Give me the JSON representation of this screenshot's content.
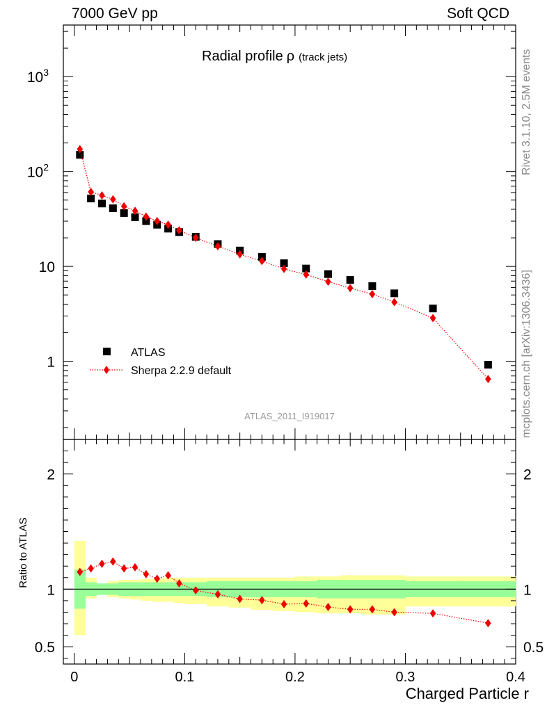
{
  "header": {
    "left": "7000 GeV pp",
    "right": "Soft QCD"
  },
  "side_labels": {
    "rivet": "Rivet 3.1.10,  2.5M events",
    "mcplots": "mcplots.cern.ch [arXiv:1306.3436]"
  },
  "chart_data": [
    {
      "type": "scatter",
      "title": "Radial profile",
      "title_symbol": "ρ",
      "title_suffix": "(track jets)",
      "analysis_label": "ATLAS_2011_I919017",
      "yscale": "log",
      "ylim": [
        0.15,
        3500
      ],
      "xlim": [
        -0.01,
        0.4
      ],
      "y_ticks": [
        {
          "value": 1,
          "label": "1",
          "exp": ""
        },
        {
          "value": 10,
          "label": "10",
          "exp": ""
        },
        {
          "value": 100,
          "label": "10",
          "exp": "2"
        },
        {
          "value": 1000,
          "label": "10",
          "exp": "3"
        }
      ],
      "legend_position": "lower-left",
      "series": [
        {
          "name": "ATLAS",
          "marker": "square",
          "color": "#000000",
          "x": [
            0.005,
            0.015,
            0.025,
            0.035,
            0.045,
            0.055,
            0.065,
            0.075,
            0.085,
            0.095,
            0.11,
            0.13,
            0.15,
            0.17,
            0.19,
            0.21,
            0.23,
            0.25,
            0.27,
            0.29,
            0.325,
            0.375
          ],
          "y": [
            150,
            52,
            46,
            41,
            36.5,
            33,
            30,
            27.5,
            25,
            23,
            20.5,
            17.2,
            14.7,
            12.6,
            10.8,
            9.5,
            8.3,
            7.2,
            6.2,
            5.2,
            3.6,
            0.92
          ]
        },
        {
          "name": "Sherpa 2.2.9 default",
          "marker": "diamond",
          "line": "dotted",
          "color": "#ee0000",
          "x": [
            0.005,
            0.015,
            0.025,
            0.035,
            0.045,
            0.055,
            0.065,
            0.075,
            0.085,
            0.095,
            0.11,
            0.13,
            0.15,
            0.17,
            0.19,
            0.21,
            0.23,
            0.25,
            0.27,
            0.29,
            0.325,
            0.375
          ],
          "y": [
            172,
            61,
            56,
            51,
            43,
            38.5,
            33.5,
            30,
            27.5,
            24,
            20,
            16.3,
            13.4,
            11.4,
            9.4,
            8.2,
            6.9,
            5.9,
            5.1,
            4.2,
            2.85,
            0.65
          ]
        }
      ]
    },
    {
      "type": "scatter",
      "ylabel": "Ratio to ATLAS",
      "xlabel": "Charged Particle r",
      "ylim": [
        0.35,
        2.3
      ],
      "xlim": [
        -0.01,
        0.4
      ],
      "x_ticks": [
        {
          "value": 0,
          "label": "0"
        },
        {
          "value": 0.1,
          "label": "0.1"
        },
        {
          "value": 0.2,
          "label": "0.2"
        },
        {
          "value": 0.3,
          "label": "0.3"
        },
        {
          "value": 0.4,
          "label": "0.4"
        }
      ],
      "y_ticks": [
        {
          "value": 0.5,
          "label": "0.5"
        },
        {
          "value": 1,
          "label": "1"
        },
        {
          "value": 2,
          "label": "2"
        }
      ],
      "bands": {
        "edges": [
          0,
          0.01,
          0.02,
          0.03,
          0.04,
          0.05,
          0.06,
          0.07,
          0.08,
          0.09,
          0.1,
          0.12,
          0.14,
          0.16,
          0.18,
          0.2,
          0.22,
          0.24,
          0.26,
          0.28,
          0.3,
          0.35,
          0.4
        ],
        "stat": {
          "color": "#99ff99",
          "low": [
            0.83,
            0.94,
            0.95,
            0.95,
            0.94,
            0.94,
            0.94,
            0.94,
            0.94,
            0.94,
            0.94,
            0.93,
            0.93,
            0.93,
            0.93,
            0.93,
            0.92,
            0.92,
            0.92,
            0.92,
            0.93,
            0.93
          ],
          "high": [
            1.17,
            1.06,
            1.05,
            1.05,
            1.06,
            1.06,
            1.06,
            1.06,
            1.06,
            1.06,
            1.06,
            1.07,
            1.07,
            1.07,
            1.07,
            1.07,
            1.08,
            1.08,
            1.08,
            1.08,
            1.07,
            1.07
          ]
        },
        "total": {
          "color": "#ffff99",
          "low": [
            0.6,
            0.92,
            0.96,
            0.93,
            0.92,
            0.91,
            0.9,
            0.89,
            0.89,
            0.88,
            0.87,
            0.85,
            0.84,
            0.82,
            0.81,
            0.8,
            0.79,
            0.79,
            0.78,
            0.78,
            0.85,
            0.85
          ],
          "high": [
            1.42,
            1.1,
            1.05,
            1.07,
            1.08,
            1.08,
            1.09,
            1.09,
            1.1,
            1.1,
            1.1,
            1.1,
            1.1,
            1.1,
            1.1,
            1.11,
            1.11,
            1.12,
            1.12,
            1.12,
            1.11,
            1.11
          ]
        }
      },
      "series": [
        {
          "name": "Sherpa 2.2.9 default / ATLAS",
          "marker": "diamond",
          "line": "dotted",
          "color": "#ee0000",
          "x": [
            0.005,
            0.015,
            0.025,
            0.035,
            0.045,
            0.055,
            0.065,
            0.075,
            0.085,
            0.095,
            0.11,
            0.13,
            0.15,
            0.17,
            0.19,
            0.21,
            0.23,
            0.25,
            0.27,
            0.29,
            0.325,
            0.375
          ],
          "y": [
            1.15,
            1.18,
            1.22,
            1.24,
            1.18,
            1.19,
            1.13,
            1.09,
            1.12,
            1.05,
            0.99,
            0.955,
            0.915,
            0.905,
            0.87,
            0.875,
            0.845,
            0.825,
            0.825,
            0.8,
            0.79,
            0.705
          ]
        }
      ],
      "reference_line": 1
    }
  ]
}
